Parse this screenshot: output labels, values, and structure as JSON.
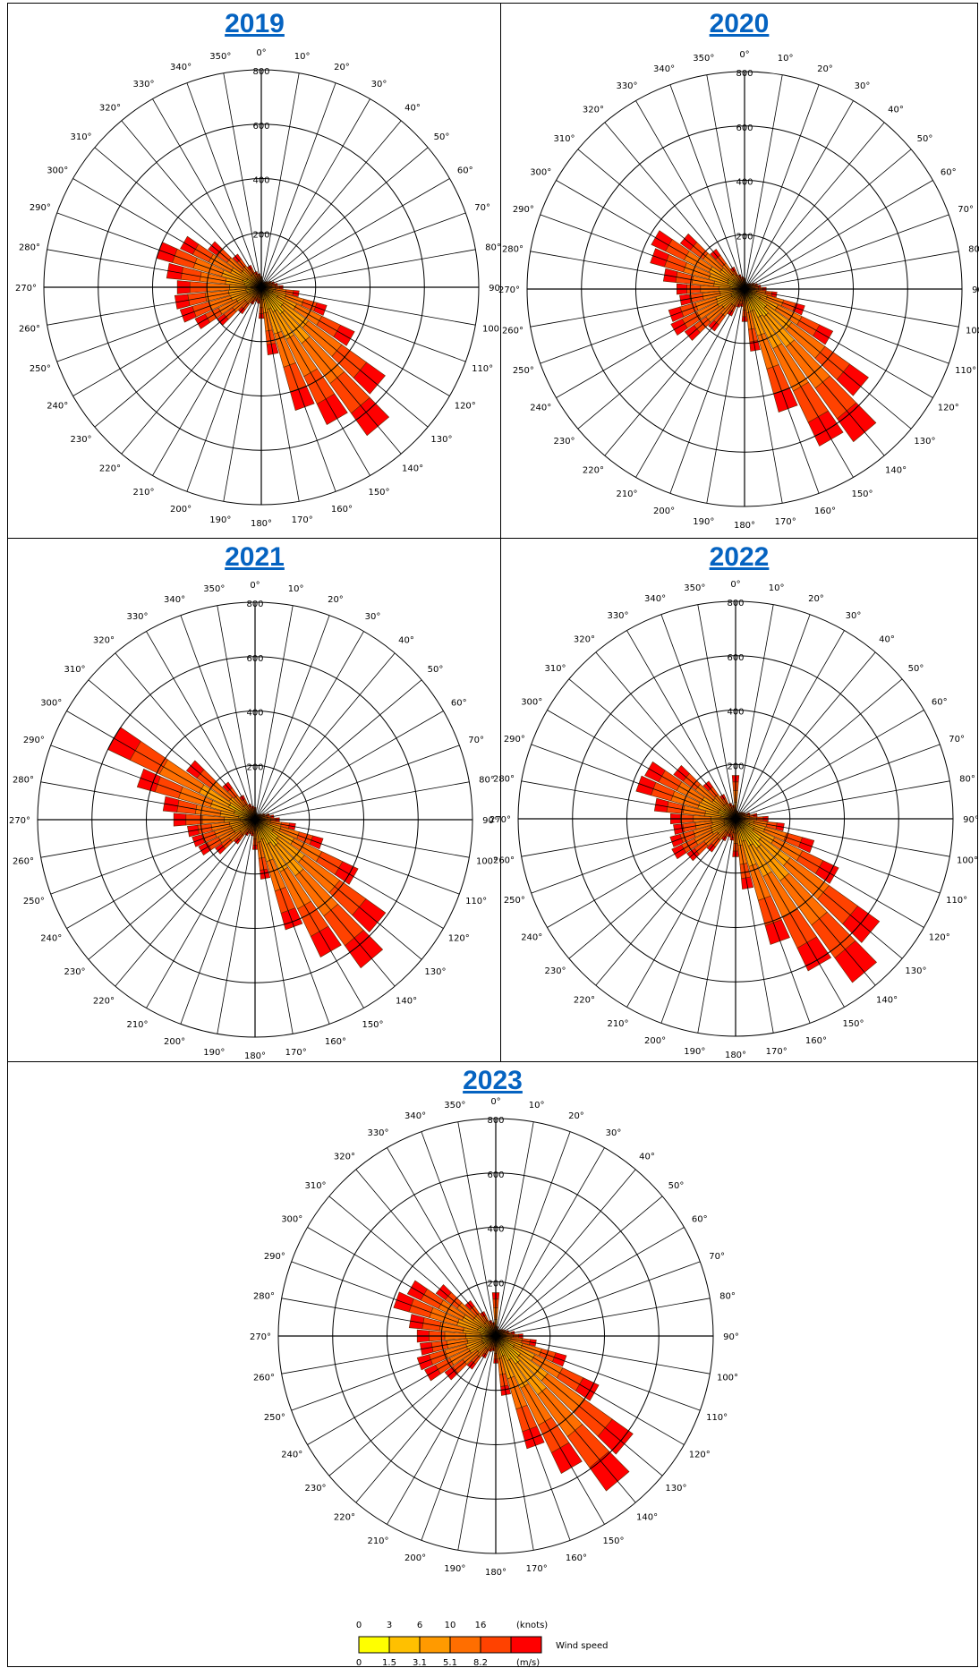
{
  "chart_data": [
    {
      "type": "wind-rose",
      "title": "2019",
      "radial_ticks": [
        200,
        400,
        600,
        800
      ],
      "direction_labels": [
        "0°",
        "10°",
        "20°",
        "30°",
        "40°",
        "50°",
        "60°",
        "70°",
        "80°",
        "90°",
        "100°",
        "110°",
        "120°",
        "130°",
        "140°",
        "150°",
        "160°",
        "170°",
        "180°",
        "190°",
        "200°",
        "210°",
        "220°",
        "230°",
        "240°",
        "250°",
        "260°",
        "270°",
        "280°",
        "290°",
        "300°",
        "310°",
        "320°",
        "330°",
        "340°",
        "350°"
      ],
      "directions": [
        0,
        10,
        20,
        30,
        40,
        50,
        60,
        70,
        80,
        90,
        100,
        110,
        120,
        130,
        140,
        150,
        160,
        170,
        180,
        190,
        200,
        210,
        220,
        230,
        240,
        250,
        260,
        270,
        280,
        290,
        300,
        310,
        320,
        330,
        340,
        350
      ],
      "totals": [
        40,
        25,
        20,
        20,
        25,
        30,
        40,
        50,
        60,
        80,
        140,
        250,
        380,
        560,
        670,
        560,
        470,
        250,
        115,
        60,
        55,
        70,
        120,
        200,
        270,
        310,
        320,
        310,
        350,
        400,
        330,
        240,
        150,
        90,
        60,
        50
      ]
    },
    {
      "type": "wind-rose",
      "title": "2020",
      "radial_ticks": [
        200,
        400,
        600,
        800
      ],
      "direction_labels": [
        "0°",
        "10°",
        "20°",
        "30°",
        "40°",
        "50°",
        "60°",
        "70°",
        "80°",
        "90°",
        "100°",
        "110°",
        "120°",
        "130°",
        "140°",
        "150°",
        "160°",
        "170°",
        "180°",
        "190°",
        "200°",
        "210°",
        "220°",
        "230°",
        "240°",
        "250°",
        "260°",
        "270°",
        "280°",
        "290°",
        "300°",
        "310°",
        "320°",
        "330°",
        "340°",
        "350°"
      ],
      "directions": [
        0,
        10,
        20,
        30,
        40,
        50,
        60,
        70,
        80,
        90,
        100,
        110,
        120,
        130,
        140,
        150,
        160,
        170,
        180,
        190,
        200,
        210,
        220,
        230,
        240,
        250,
        260,
        270,
        280,
        290,
        300,
        310,
        320,
        330,
        340,
        350
      ],
      "totals": [
        40,
        25,
        20,
        20,
        25,
        30,
        40,
        50,
        60,
        80,
        120,
        230,
        360,
        560,
        690,
        640,
        470,
        230,
        120,
        65,
        70,
        110,
        190,
        270,
        300,
        290,
        240,
        250,
        300,
        360,
        380,
        290,
        180,
        90,
        55,
        45
      ]
    },
    {
      "type": "wind-rose",
      "title": "2021",
      "radial_ticks": [
        200,
        400,
        600,
        800
      ],
      "direction_labels": [
        "0°",
        "10°",
        "20°",
        "30°",
        "40°",
        "50°",
        "60°",
        "70°",
        "80°",
        "90°",
        "100°",
        "110°",
        "120°",
        "130°",
        "140°",
        "150°",
        "160°",
        "170°",
        "180°",
        "190°",
        "200°",
        "210°",
        "220°",
        "230°",
        "240°",
        "250°",
        "260°",
        "270°",
        "280°",
        "290°",
        "300°",
        "310°",
        "320°",
        "330°",
        "340°",
        "350°"
      ],
      "directions": [
        0,
        10,
        20,
        30,
        40,
        50,
        60,
        70,
        80,
        90,
        100,
        110,
        120,
        130,
        140,
        150,
        160,
        170,
        180,
        190,
        200,
        210,
        220,
        230,
        240,
        250,
        260,
        270,
        280,
        290,
        300,
        310,
        320,
        330,
        340,
        350
      ],
      "totals": [
        45,
        25,
        20,
        20,
        25,
        30,
        40,
        55,
        70,
        90,
        150,
        260,
        420,
        590,
        670,
        560,
        420,
        220,
        110,
        60,
        55,
        65,
        110,
        180,
        230,
        240,
        250,
        300,
        340,
        450,
        600,
        310,
        170,
        100,
        60,
        50
      ]
    },
    {
      "type": "wind-rose",
      "title": "2022",
      "radial_ticks": [
        200,
        400,
        600,
        800
      ],
      "direction_labels": [
        "0°",
        "10°",
        "20°",
        "30°",
        "40°",
        "50°",
        "60°",
        "70°",
        "80°",
        "90°",
        "100°",
        "110°",
        "120°",
        "130°",
        "140°",
        "150°",
        "160°",
        "170°",
        "180°",
        "190°",
        "200°",
        "210°",
        "220°",
        "230°",
        "240°",
        "250°",
        "260°",
        "270°",
        "280°",
        "290°",
        "300°",
        "310°",
        "320°",
        "330°",
        "340°",
        "350°"
      ],
      "directions": [
        0,
        10,
        20,
        30,
        40,
        50,
        60,
        70,
        80,
        90,
        100,
        110,
        120,
        130,
        140,
        150,
        160,
        170,
        180,
        190,
        200,
        210,
        220,
        230,
        240,
        250,
        260,
        270,
        280,
        290,
        300,
        310,
        320,
        330,
        340,
        350
      ],
      "totals": [
        160,
        30,
        25,
        25,
        30,
        35,
        40,
        55,
        80,
        120,
        180,
        300,
        420,
        650,
        740,
        620,
        480,
        260,
        140,
        80,
        70,
        90,
        150,
        220,
        260,
        250,
        230,
        240,
        300,
        380,
        370,
        280,
        170,
        100,
        60,
        50
      ]
    },
    {
      "type": "wind-rose",
      "title": "2023",
      "radial_ticks": [
        200,
        400,
        600,
        800
      ],
      "direction_labels": [
        "0°",
        "10°",
        "20°",
        "30°",
        "40°",
        "50°",
        "60°",
        "70°",
        "80°",
        "90°",
        "100°",
        "110°",
        "120°",
        "130°",
        "140°",
        "150°",
        "160°",
        "170°",
        "180°",
        "190°",
        "200°",
        "210°",
        "220°",
        "230°",
        "240°",
        "250°",
        "260°",
        "270°",
        "280°",
        "290°",
        "300°",
        "310°",
        "320°",
        "330°",
        "340°",
        "350°"
      ],
      "directions": [
        0,
        10,
        20,
        30,
        40,
        50,
        60,
        70,
        80,
        90,
        100,
        110,
        120,
        130,
        140,
        150,
        160,
        170,
        180,
        190,
        200,
        210,
        220,
        230,
        240,
        250,
        260,
        270,
        280,
        290,
        300,
        310,
        320,
        330,
        340,
        350
      ],
      "totals": [
        160,
        35,
        25,
        25,
        30,
        35,
        40,
        50,
        70,
        100,
        150,
        270,
        420,
        620,
        700,
        560,
        430,
        220,
        100,
        55,
        60,
        90,
        150,
        230,
        290,
        300,
        280,
        290,
        320,
        390,
        360,
        270,
        160,
        100,
        60,
        50
      ]
    }
  ],
  "legend": {
    "knots_labels": [
      "0",
      "3",
      "6",
      "10",
      "16"
    ],
    "knots_unit": "(knots)",
    "ms_labels": [
      "0",
      "1.5",
      "3.1",
      "5.1",
      "8.2"
    ],
    "ms_unit": "(m/s)",
    "title": "Wind speed",
    "bin_colors": [
      "#ffff00",
      "#ffc000",
      "#ff9a00",
      "#ff6e00",
      "#ff4200",
      "#ff0000"
    ],
    "bin_fractions": [
      0.06,
      0.12,
      0.2,
      0.27,
      0.2,
      0.15
    ]
  },
  "colors": {
    "link": "#0563c1",
    "grid": "#000000",
    "bar_stroke": "#5a2a00"
  }
}
